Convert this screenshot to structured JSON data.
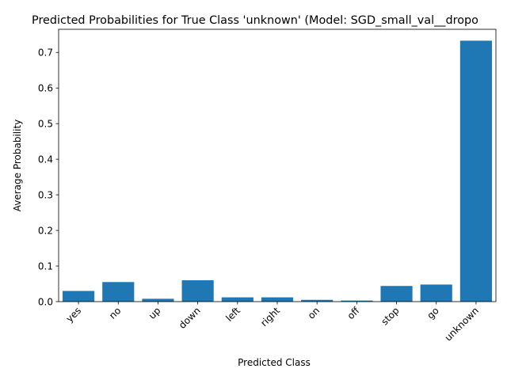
{
  "chart_data": {
    "type": "bar",
    "title": "Predicted Probabilities for True Class 'unknown' (Model: SGD_small_val__dropo",
    "xlabel": "Predicted Class",
    "ylabel": "Average Probability",
    "categories": [
      "yes",
      "no",
      "up",
      "down",
      "left",
      "right",
      "on",
      "off",
      "stop",
      "go",
      "unknown"
    ],
    "values": [
      0.03,
      0.055,
      0.008,
      0.06,
      0.012,
      0.012,
      0.005,
      0.003,
      0.044,
      0.048,
      0.733
    ],
    "ylim": [
      0,
      0.765
    ],
    "yticks": [
      0.0,
      0.1,
      0.2,
      0.3,
      0.4,
      0.5,
      0.6,
      0.7
    ],
    "ytick_labels": [
      "0.0",
      "0.1",
      "0.2",
      "0.3",
      "0.4",
      "0.5",
      "0.6",
      "0.7"
    ],
    "grid": false,
    "bar_color": "#1f77b4"
  }
}
